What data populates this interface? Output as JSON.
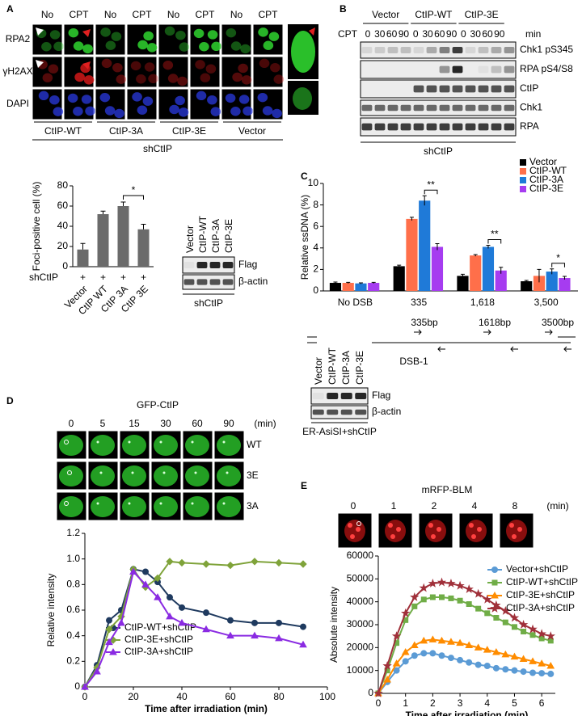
{
  "panel_labels": [
    "A",
    "B",
    "C",
    "D",
    "E"
  ],
  "panel_a": {
    "columns": [
      "No",
      "CPT"
    ],
    "rows": [
      "RPA2",
      "γH2AX",
      "DAPI"
    ],
    "groups": [
      "CtIP-WT",
      "CtIP-3A",
      "CtIP-3E",
      "Vector"
    ],
    "condition": "shCtIP",
    "blot": {
      "lanes": [
        "Vector",
        "CtIP-WT",
        "CtIP-3A",
        "CtIP-3E"
      ],
      "bands": [
        "Flag",
        "β-actin"
      ],
      "condition": "shCtIP"
    }
  },
  "panel_b": {
    "groups": [
      "Vector",
      "CtIP-WT",
      "CtIP-3E"
    ],
    "treatment": "CPT",
    "times": [
      0,
      30,
      60,
      90
    ],
    "time_unit": "min",
    "bands": [
      "Chk1 pS345",
      "RPA pS4/S8",
      "CtIP",
      "Chk1",
      "RPA"
    ],
    "condition": "shCtIP"
  },
  "panel_c": {
    "diagram": {
      "fragments": [
        "335bp",
        "1618bp",
        "3500bp"
      ],
      "site": "DSB-1"
    },
    "blot": {
      "lanes": [
        "Vector",
        "CtIP-WT",
        "CtIP-3A",
        "CtIP-3E"
      ],
      "bands": [
        "Flag",
        "β-actin"
      ],
      "condition": "ER-AsiSI+shCtIP"
    }
  },
  "panel_d": {
    "title": "GFP-CtIP",
    "times": [
      0,
      5,
      15,
      30,
      60,
      90
    ],
    "time_unit": "(min)",
    "rows": [
      "WT",
      "3E",
      "3A"
    ]
  },
  "panel_e": {
    "title": "mRFP-BLM",
    "times": [
      0,
      1,
      2,
      4,
      8
    ],
    "time_unit": "(min)"
  },
  "chart_data": [
    {
      "type": "bar",
      "y_label": "Foci-positive cell (%)",
      "categories": [
        "Vector",
        "CtIP WT",
        "CtIP 3A",
        "CtIP 3E"
      ],
      "values": [
        17,
        52,
        60,
        37
      ],
      "errors": [
        6,
        3,
        4,
        5
      ],
      "color": "#6b6b6b",
      "ylim": [
        0,
        80
      ],
      "yticks": [
        0,
        20,
        40,
        60,
        80
      ],
      "row_label": "shCtIP",
      "row_marks": [
        "+",
        "+",
        "+",
        "+"
      ],
      "annotations": [
        "*"
      ]
    },
    {
      "type": "bar",
      "y_label": "Relative ssDNA (%)",
      "categories": [
        "No DSB",
        "335",
        "1,618",
        "3,500"
      ],
      "series": [
        {
          "name": "Vector",
          "color": "#000000",
          "values": [
            0.75,
            2.3,
            1.4,
            0.9
          ],
          "errors": [
            0.08,
            0.1,
            0.15,
            0.08
          ]
        },
        {
          "name": "CtIP-WT",
          "color": "#ff6f4a",
          "values": [
            0.75,
            6.7,
            3.3,
            1.4
          ],
          "errors": [
            0.05,
            0.15,
            0.08,
            0.6
          ]
        },
        {
          "name": "CtIP-3A",
          "color": "#1f7ad8",
          "values": [
            0.7,
            8.4,
            4.1,
            1.8
          ],
          "errors": [
            0.05,
            0.45,
            0.15,
            0.25
          ]
        },
        {
          "name": "CtIP-3E",
          "color": "#a63cf0",
          "values": [
            0.75,
            4.1,
            1.9,
            1.2
          ],
          "errors": [
            0.05,
            0.3,
            0.3,
            0.15
          ]
        }
      ],
      "ylim": [
        0,
        10
      ],
      "yticks": [
        0,
        2,
        4,
        6,
        8,
        10
      ],
      "annotations": [
        "**",
        "**",
        "*"
      ],
      "legend": "upper right"
    },
    {
      "type": "line",
      "x_label": "Time after irradiation (min)",
      "y_label": "Relative  intensity",
      "x": [
        0,
        5,
        10,
        15,
        20,
        25,
        30,
        35,
        40,
        50,
        60,
        70,
        80,
        90
      ],
      "series": [
        {
          "name": "CtIP-WT+shCtIP",
          "color": "#1f3a5f",
          "marker": "circle",
          "values": [
            0,
            0.17,
            0.52,
            0.6,
            0.92,
            0.9,
            0.82,
            0.7,
            0.62,
            0.58,
            0.52,
            0.5,
            0.5,
            0.47
          ]
        },
        {
          "name": "CtIP-3E+shCtIP",
          "color": "#7fa33a",
          "marker": "diamond",
          "values": [
            0,
            0.15,
            0.45,
            0.55,
            0.92,
            0.78,
            0.85,
            0.98,
            0.97,
            0.96,
            0.95,
            0.98,
            0.97,
            0.96
          ]
        },
        {
          "name": "CtIP-3A+shCtIP",
          "color": "#8a2be2",
          "marker": "triangle",
          "values": [
            0,
            0.12,
            0.35,
            0.5,
            0.9,
            0.8,
            0.7,
            0.55,
            0.5,
            0.45,
            0.4,
            0.4,
            0.38,
            0.33
          ]
        }
      ],
      "xlim": [
        0,
        100
      ],
      "xticks": [
        0,
        20,
        40,
        60,
        80,
        100
      ],
      "ylim": [
        0,
        1.2
      ],
      "yticks": [
        0,
        0.2,
        0.4,
        0.6,
        0.8,
        {
          "value": 1,
          "label": "1.0"
        },
        1.2
      ],
      "legend": "lower left"
    },
    {
      "type": "line",
      "x_label": "Time after irradiation (min)",
      "y_label": "Absolute intensity",
      "x": [
        0,
        0.33,
        0.67,
        1,
        1.33,
        1.67,
        2,
        2.33,
        2.67,
        3,
        3.33,
        3.67,
        4,
        4.33,
        4.67,
        5,
        5.33,
        5.67,
        6,
        6.33
      ],
      "series": [
        {
          "name": "Vector+shCtIP",
          "color": "#5b9bd5",
          "marker": "circle",
          "values": [
            0,
            5000,
            10000,
            14000,
            16500,
            17500,
            17500,
            16500,
            15500,
            14500,
            13500,
            12500,
            12000,
            11000,
            10500,
            10000,
            9500,
            9000,
            8800,
            8500
          ]
        },
        {
          "name": "CtIP-WT+shCtIP",
          "color": "#70ad47",
          "marker": "square",
          "values": [
            0,
            10000,
            22000,
            32000,
            38000,
            41000,
            42000,
            42000,
            41500,
            40500,
            39000,
            37000,
            35000,
            33000,
            31000,
            29000,
            27000,
            25500,
            24000,
            23000
          ]
        },
        {
          "name": "CtIP-3E+shCtIP",
          "color": "#ff8c00",
          "marker": "triangle",
          "values": [
            0,
            6000,
            13000,
            18000,
            21000,
            23000,
            23500,
            23000,
            22500,
            22000,
            21000,
            20000,
            19000,
            18000,
            17000,
            16000,
            15000,
            14000,
            13000,
            12000
          ]
        },
        {
          "name": "CtIP-3A+shCtIP",
          "color": "#a0303a",
          "marker": "star",
          "values": [
            0,
            12000,
            25000,
            35000,
            42000,
            46000,
            48000,
            48500,
            48000,
            47000,
            45500,
            43500,
            41000,
            38500,
            36000,
            33000,
            30000,
            28000,
            26000,
            25000
          ]
        }
      ],
      "xlim": [
        0,
        6.5
      ],
      "xticks": [
        0,
        1,
        2,
        3,
        4,
        5,
        6
      ],
      "ylim": [
        0,
        60000
      ],
      "yticks": [
        0,
        10000,
        20000,
        30000,
        40000,
        50000,
        60000
      ],
      "legend": "upper right"
    }
  ]
}
